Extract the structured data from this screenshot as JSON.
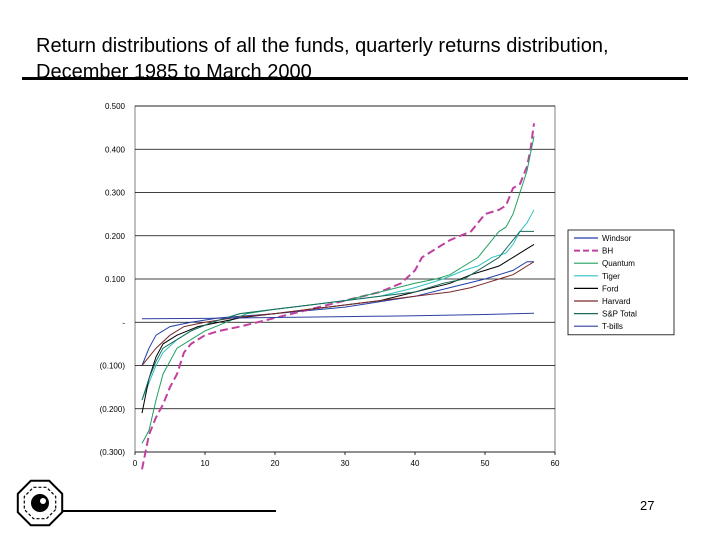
{
  "slide": {
    "title": "Return distributions of all the funds, quarterly returns distribution, December 1985 to March 2000",
    "page_number": "27"
  },
  "chart_data": {
    "type": "line",
    "title": "",
    "xlabel": "",
    "ylabel": "",
    "xlim": [
      0,
      60
    ],
    "ylim": [
      -0.3,
      0.5
    ],
    "x_ticks": [
      "0",
      "10",
      "20",
      "30",
      "40",
      "50",
      "60"
    ],
    "y_ticks": [
      {
        "value": 0.5,
        "label": "0.500"
      },
      {
        "value": 0.4,
        "label": "0.400"
      },
      {
        "value": 0.3,
        "label": "0.300"
      },
      {
        "value": 0.2,
        "label": "0.200"
      },
      {
        "value": 0.1,
        "label": "0.100"
      },
      {
        "value": 0.0,
        "label": "-"
      },
      {
        "value": -0.1,
        "label": "(0.100)"
      },
      {
        "value": -0.2,
        "label": "(0.200)"
      },
      {
        "value": -0.3,
        "label": "(0.300)"
      }
    ],
    "grid": "horizontal",
    "legend_position": "right",
    "series": [
      {
        "name": "Windsor",
        "color": "#1f3fa8",
        "dash": "solid",
        "points": [
          [
            1,
            -0.1
          ],
          [
            2,
            -0.06
          ],
          [
            3,
            -0.03
          ],
          [
            5,
            -0.01
          ],
          [
            8,
            0.0
          ],
          [
            12,
            0.01
          ],
          [
            20,
            0.02
          ],
          [
            30,
            0.035
          ],
          [
            40,
            0.06
          ],
          [
            45,
            0.08
          ],
          [
            50,
            0.1
          ],
          [
            54,
            0.12
          ],
          [
            56,
            0.14
          ],
          [
            57,
            0.14
          ]
        ]
      },
      {
        "name": "BH",
        "color": "#c040a0",
        "dash": "dash",
        "points": [
          [
            1,
            -0.34
          ],
          [
            2,
            -0.26
          ],
          [
            3,
            -0.22
          ],
          [
            4,
            -0.19
          ],
          [
            5,
            -0.15
          ],
          [
            6,
            -0.12
          ],
          [
            7,
            -0.07
          ],
          [
            8,
            -0.05
          ],
          [
            10,
            -0.03
          ],
          [
            12,
            -0.02
          ],
          [
            15,
            -0.01
          ],
          [
            20,
            0.01
          ],
          [
            25,
            0.03
          ],
          [
            30,
            0.05
          ],
          [
            35,
            0.07
          ],
          [
            38,
            0.09
          ],
          [
            40,
            0.12
          ],
          [
            41,
            0.15
          ],
          [
            43,
            0.17
          ],
          [
            45,
            0.19
          ],
          [
            48,
            0.21
          ],
          [
            49,
            0.23
          ],
          [
            50,
            0.25
          ],
          [
            52,
            0.26
          ],
          [
            53,
            0.27
          ],
          [
            54,
            0.31
          ],
          [
            55,
            0.32
          ],
          [
            56,
            0.36
          ],
          [
            56.5,
            0.4
          ],
          [
            57,
            0.46
          ]
        ]
      },
      {
        "name": "Quantum",
        "color": "#20a060",
        "dash": "solid",
        "points": [
          [
            1,
            -0.28
          ],
          [
            2,
            -0.25
          ],
          [
            3,
            -0.18
          ],
          [
            4,
            -0.12
          ],
          [
            5,
            -0.09
          ],
          [
            6,
            -0.06
          ],
          [
            8,
            -0.04
          ],
          [
            10,
            -0.02
          ],
          [
            13,
            0.0
          ],
          [
            16,
            0.02
          ],
          [
            20,
            0.03
          ],
          [
            25,
            0.04
          ],
          [
            30,
            0.05
          ],
          [
            35,
            0.07
          ],
          [
            40,
            0.09
          ],
          [
            43,
            0.1
          ],
          [
            45,
            0.11
          ],
          [
            47,
            0.13
          ],
          [
            49,
            0.15
          ],
          [
            50,
            0.17
          ],
          [
            51,
            0.19
          ],
          [
            52,
            0.21
          ],
          [
            53,
            0.22
          ],
          [
            54,
            0.25
          ],
          [
            55,
            0.3
          ],
          [
            56,
            0.35
          ],
          [
            56.5,
            0.39
          ],
          [
            57,
            0.43
          ]
        ]
      },
      {
        "name": "Tiger",
        "color": "#30c0c0",
        "dash": "solid",
        "points": [
          [
            1,
            -0.18
          ],
          [
            2,
            -0.14
          ],
          [
            3,
            -0.1
          ],
          [
            4,
            -0.07
          ],
          [
            6,
            -0.04
          ],
          [
            8,
            -0.02
          ],
          [
            11,
            0.0
          ],
          [
            15,
            0.02
          ],
          [
            20,
            0.03
          ],
          [
            25,
            0.04
          ],
          [
            30,
            0.05
          ],
          [
            35,
            0.06
          ],
          [
            40,
            0.08
          ],
          [
            44,
            0.1
          ],
          [
            47,
            0.12
          ],
          [
            49,
            0.13
          ],
          [
            51,
            0.15
          ],
          [
            53,
            0.16
          ],
          [
            54,
            0.18
          ],
          [
            55,
            0.21
          ],
          [
            56,
            0.23
          ],
          [
            57,
            0.26
          ]
        ]
      },
      {
        "name": "Ford",
        "color": "#000000",
        "dash": "solid",
        "points": [
          [
            1,
            -0.21
          ],
          [
            2,
            -0.13
          ],
          [
            3,
            -0.08
          ],
          [
            4,
            -0.05
          ],
          [
            6,
            -0.03
          ],
          [
            9,
            -0.01
          ],
          [
            12,
            0.0
          ],
          [
            15,
            0.01
          ],
          [
            20,
            0.02
          ],
          [
            25,
            0.03
          ],
          [
            30,
            0.04
          ],
          [
            35,
            0.05
          ],
          [
            40,
            0.07
          ],
          [
            45,
            0.09
          ],
          [
            48,
            0.11
          ],
          [
            50,
            0.12
          ],
          [
            52,
            0.13
          ],
          [
            54,
            0.15
          ],
          [
            55,
            0.16
          ],
          [
            56,
            0.17
          ],
          [
            57,
            0.18
          ]
        ]
      },
      {
        "name": "Harvard",
        "color": "#7a2a2a",
        "dash": "solid",
        "points": [
          [
            1,
            -0.1
          ],
          [
            2,
            -0.08
          ],
          [
            3,
            -0.06
          ],
          [
            5,
            -0.03
          ],
          [
            7,
            -0.01
          ],
          [
            10,
            0.0
          ],
          [
            14,
            0.01
          ],
          [
            20,
            0.02
          ],
          [
            25,
            0.03
          ],
          [
            30,
            0.04
          ],
          [
            35,
            0.05
          ],
          [
            40,
            0.06
          ],
          [
            45,
            0.07
          ],
          [
            48,
            0.08
          ],
          [
            50,
            0.09
          ],
          [
            52,
            0.1
          ],
          [
            54,
            0.11
          ],
          [
            55,
            0.12
          ],
          [
            56,
            0.13
          ],
          [
            57,
            0.14
          ]
        ]
      },
      {
        "name": "S&P Total",
        "color": "#1a6a5a",
        "dash": "solid",
        "points": [
          [
            1,
            -0.18
          ],
          [
            2,
            -0.13
          ],
          [
            3,
            -0.09
          ],
          [
            4,
            -0.06
          ],
          [
            6,
            -0.04
          ],
          [
            8,
            -0.02
          ],
          [
            11,
            0.0
          ],
          [
            15,
            0.02
          ],
          [
            20,
            0.03
          ],
          [
            25,
            0.04
          ],
          [
            30,
            0.05
          ],
          [
            35,
            0.06
          ],
          [
            40,
            0.07
          ],
          [
            44,
            0.09
          ],
          [
            47,
            0.1
          ],
          [
            49,
            0.12
          ],
          [
            51,
            0.14
          ],
          [
            52,
            0.15
          ],
          [
            53,
            0.17
          ],
          [
            54,
            0.19
          ],
          [
            55,
            0.21
          ],
          [
            57,
            0.21
          ]
        ]
      },
      {
        "name": "T-bills",
        "color": "#3040a0",
        "dash": "solid",
        "points": [
          [
            1,
            0.008
          ],
          [
            10,
            0.009
          ],
          [
            20,
            0.011
          ],
          [
            30,
            0.013
          ],
          [
            40,
            0.015
          ],
          [
            50,
            0.018
          ],
          [
            57,
            0.021
          ]
        ]
      }
    ]
  }
}
